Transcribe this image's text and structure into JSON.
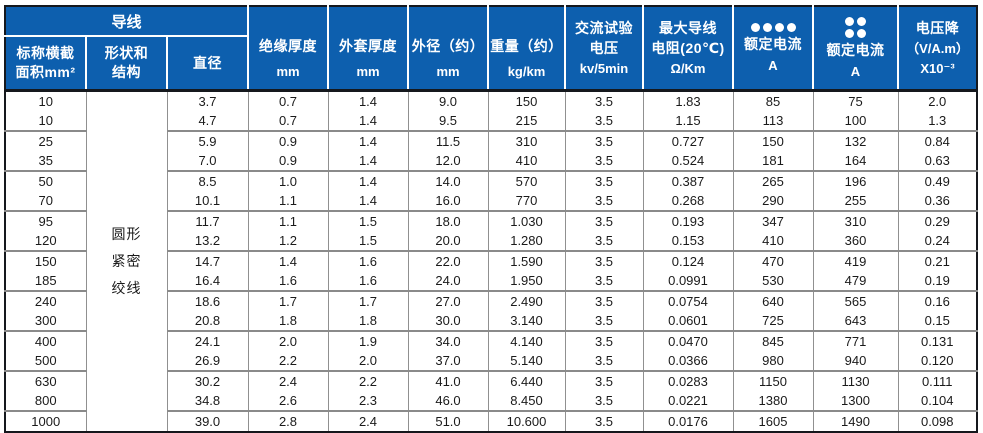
{
  "colors": {
    "header_background": "#0d5fae",
    "header_text": "#ffffff",
    "grid_line": "#909090",
    "group_line": "#8a8a8a",
    "outer_border": "#15181d",
    "body_text": "#1a1a1a"
  },
  "table": {
    "header": {
      "conductor_group": "导线",
      "columns": [
        {
          "id": "nominal-area",
          "lines": [
            "标称横截",
            "面积mm²"
          ]
        },
        {
          "id": "shape-structure",
          "lines": [
            "形状和",
            "结构"
          ]
        },
        {
          "id": "diameter",
          "lines": [
            "直径"
          ]
        },
        {
          "id": "insulation-thickness",
          "lines": [
            "绝缘厚度",
            "mm"
          ]
        },
        {
          "id": "sheath-thickness",
          "lines": [
            "外套厚度",
            "mm"
          ]
        },
        {
          "id": "outer-diameter",
          "lines": [
            "外径（约）",
            "mm"
          ]
        },
        {
          "id": "weight",
          "lines": [
            "重量（约）",
            "kg/km"
          ]
        },
        {
          "id": "ac-test-voltage",
          "lines": [
            "交流试验",
            "电压",
            "kv/5min"
          ]
        },
        {
          "id": "max-conductor-resistance",
          "lines": [
            "最大导线",
            "电阻(20℃)",
            "Ω/Km"
          ]
        },
        {
          "id": "rated-current-a",
          "icon": "four-dots-row-icon",
          "lines": [
            "额定电流",
            "A"
          ]
        },
        {
          "id": "rated-current-b",
          "icon": "four-dots-grid-icon",
          "lines": [
            "额定电流",
            "A"
          ]
        },
        {
          "id": "voltage-drop",
          "lines": [
            "电压降",
            "（V/A.m）",
            "X10⁻³"
          ]
        }
      ]
    },
    "shape_cell_lines": [
      "圆形",
      "紧密",
      "绞线"
    ],
    "col_ids": [
      "nominal-area",
      "diameter",
      "insulation-thickness",
      "sheath-thickness",
      "outer-diameter",
      "weight",
      "ac-test-voltage",
      "max-conductor-resistance",
      "rated-current-a",
      "rated-current-b",
      "voltage-drop"
    ],
    "rows": [
      [
        "10",
        "3.7",
        "0.7",
        "1.4",
        "9.0",
        "150",
        "3.5",
        "1.83",
        "85",
        "75",
        "2.0"
      ],
      [
        "10",
        "4.7",
        "0.7",
        "1.4",
        "9.5",
        "215",
        "3.5",
        "1.15",
        "113",
        "100",
        "1.3"
      ],
      [
        "25",
        "5.9",
        "0.9",
        "1.4",
        "11.5",
        "310",
        "3.5",
        "0.727",
        "150",
        "132",
        "0.84"
      ],
      [
        "35",
        "7.0",
        "0.9",
        "1.4",
        "12.0",
        "410",
        "3.5",
        "0.524",
        "181",
        "164",
        "0.63"
      ],
      [
        "50",
        "8.5",
        "1.0",
        "1.4",
        "14.0",
        "570",
        "3.5",
        "0.387",
        "265",
        "196",
        "0.49"
      ],
      [
        "70",
        "10.1",
        "1.1",
        "1.4",
        "16.0",
        "770",
        "3.5",
        "0.268",
        "290",
        "255",
        "0.36"
      ],
      [
        "95",
        "11.7",
        "1.1",
        "1.5",
        "18.0",
        "1.030",
        "3.5",
        "0.193",
        "347",
        "310",
        "0.29"
      ],
      [
        "120",
        "13.2",
        "1.2",
        "1.5",
        "20.0",
        "1.280",
        "3.5",
        "0.153",
        "410",
        "360",
        "0.24"
      ],
      [
        "150",
        "14.7",
        "1.4",
        "1.6",
        "22.0",
        "1.590",
        "3.5",
        "0.124",
        "470",
        "419",
        "0.21"
      ],
      [
        "185",
        "16.4",
        "1.6",
        "1.6",
        "24.0",
        "1.950",
        "3.5",
        "0.0991",
        "530",
        "479",
        "0.19"
      ],
      [
        "240",
        "18.6",
        "1.7",
        "1.7",
        "27.0",
        "2.490",
        "3.5",
        "0.0754",
        "640",
        "565",
        "0.16"
      ],
      [
        "300",
        "20.8",
        "1.8",
        "1.8",
        "30.0",
        "3.140",
        "3.5",
        "0.0601",
        "725",
        "643",
        "0.15"
      ],
      [
        "400",
        "24.1",
        "2.0",
        "1.9",
        "34.0",
        "4.140",
        "3.5",
        "0.0470",
        "845",
        "771",
        "0.131"
      ],
      [
        "500",
        "26.9",
        "2.2",
        "2.0",
        "37.0",
        "5.140",
        "3.5",
        "0.0366",
        "980",
        "940",
        "0.120"
      ],
      [
        "630",
        "30.2",
        "2.4",
        "2.2",
        "41.0",
        "6.440",
        "3.5",
        "0.0283",
        "1150",
        "1130",
        "0.111"
      ],
      [
        "800",
        "34.8",
        "2.6",
        "2.3",
        "46.0",
        "8.450",
        "3.5",
        "0.0221",
        "1380",
        "1300",
        "0.104"
      ],
      [
        "1000",
        "39.0",
        "2.8",
        "2.4",
        "51.0",
        "10.600",
        "3.5",
        "0.0176",
        "1605",
        "1490",
        "0.098"
      ]
    ]
  }
}
